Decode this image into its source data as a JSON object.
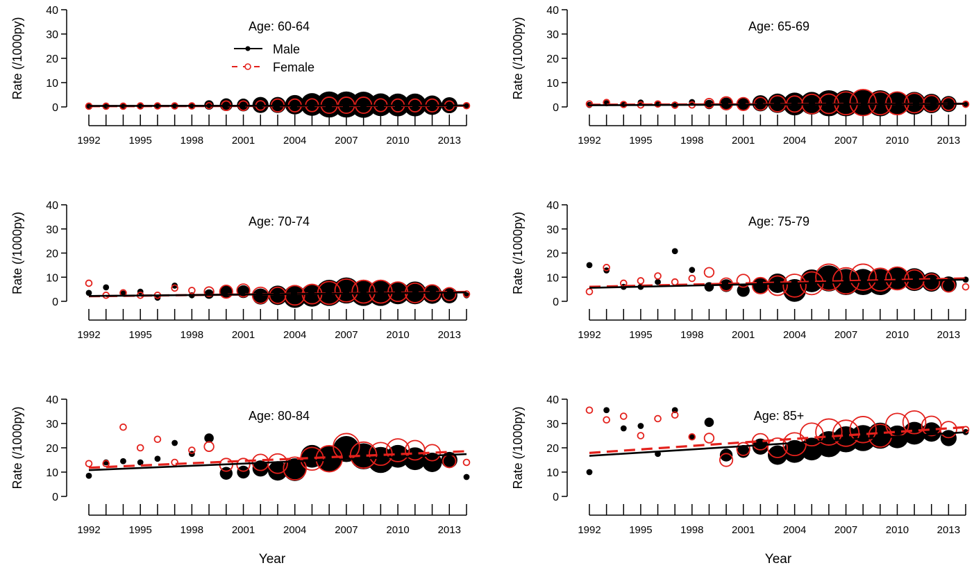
{
  "figure": {
    "y_label": "Rate (/1000py)",
    "x_label": "Year",
    "y_ticks": [
      "0",
      "10",
      "20",
      "30",
      "40"
    ],
    "x_ticks": [
      "1992",
      "1995",
      "1998",
      "2001",
      "2004",
      "2007",
      "2010",
      "2013"
    ]
  },
  "legend": {
    "male_label": "Male",
    "female_label": "Female",
    "male_color": "#000000",
    "female_color": "#e3211c"
  },
  "chart_data": [
    {
      "type": "scatter",
      "title": "Age: 60-64",
      "ylim": [
        0,
        40
      ],
      "xlim": [
        1992,
        2014
      ],
      "x": [
        1992,
        1993,
        1994,
        1995,
        1996,
        1997,
        1998,
        1999,
        2000,
        2001,
        2002,
        2003,
        2004,
        2005,
        2006,
        2007,
        2008,
        2009,
        2010,
        2011,
        2012,
        2013,
        2014
      ],
      "series": [
        {
          "name": "Male",
          "values": [
            0.5,
            0.3,
            0.4,
            0.5,
            0.5,
            0.6,
            0.5,
            0.8,
            0.9,
            0.8,
            0.8,
            0.8,
            0.9,
            1.0,
            1.0,
            1.0,
            0.9,
            0.9,
            0.8,
            0.8,
            0.7,
            0.7,
            0.6
          ],
          "size": [
            1,
            1,
            1,
            1,
            1,
            1,
            1,
            2,
            3,
            3,
            4,
            4,
            5,
            6,
            7,
            7,
            7,
            6,
            6,
            6,
            5,
            4,
            1
          ],
          "trend": [
            0.4,
            0.6
          ]
        },
        {
          "name": "Female",
          "values": [
            0.3,
            0.3,
            0.3,
            0.4,
            0.4,
            0.4,
            0.4,
            0.5,
            0.5,
            0.5,
            0.6,
            0.6,
            0.6,
            0.7,
            0.7,
            0.7,
            0.7,
            0.7,
            0.6,
            0.6,
            0.6,
            0.5,
            0.5
          ],
          "size": [
            1,
            1,
            1,
            1,
            1,
            1,
            1,
            1,
            2,
            2,
            2,
            3,
            3,
            3,
            4,
            4,
            4,
            3,
            3,
            3,
            3,
            2,
            1
          ],
          "trend": [
            0.3,
            0.5
          ]
        }
      ]
    },
    {
      "type": "scatter",
      "title": "Age: 65-69",
      "ylim": [
        0,
        40
      ],
      "xlim": [
        1992,
        2014
      ],
      "x": [
        1992,
        1993,
        1994,
        1995,
        1996,
        1997,
        1998,
        1999,
        2000,
        2001,
        2002,
        2003,
        2004,
        2005,
        2006,
        2007,
        2008,
        2009,
        2010,
        2011,
        2012,
        2013,
        2014
      ],
      "series": [
        {
          "name": "Male",
          "values": [
            0.8,
            1.5,
            1.0,
            1.8,
            1.0,
            1.0,
            2.0,
            1.0,
            1.2,
            1.0,
            1.5,
            1.5,
            1.2,
            1.5,
            1.5,
            1.5,
            1.6,
            1.5,
            1.6,
            1.5,
            1.4,
            1.2,
            1.2
          ],
          "size": [
            1,
            1,
            1,
            1,
            1,
            1,
            1,
            2,
            3,
            3,
            4,
            5,
            6,
            6,
            7,
            7,
            7,
            7,
            6,
            6,
            5,
            4,
            1
          ],
          "trend": [
            0.7,
            1.3
          ]
        },
        {
          "name": "Female",
          "values": [
            1.2,
            1.8,
            1.0,
            0.8,
            1.2,
            0.7,
            0.8,
            1.5,
            1.5,
            1.2,
            1.3,
            1.3,
            1.2,
            1.2,
            1.3,
            1.5,
            1.8,
            1.5,
            1.5,
            1.6,
            1.4,
            1.2,
            1.1
          ],
          "size": [
            1,
            1,
            1,
            1,
            1,
            1,
            1,
            2,
            3,
            3,
            3,
            4,
            4,
            5,
            5,
            6,
            7,
            6,
            6,
            5,
            4,
            3,
            1
          ],
          "trend": [
            0.9,
            1.3
          ]
        }
      ]
    },
    {
      "type": "scatter",
      "title": "Age: 70-74",
      "ylim": [
        0,
        40
      ],
      "xlim": [
        1992,
        2014
      ],
      "x": [
        1992,
        1993,
        1994,
        1995,
        1996,
        1997,
        1998,
        1999,
        2000,
        2001,
        2002,
        2003,
        2004,
        2005,
        2006,
        2007,
        2008,
        2009,
        2010,
        2011,
        2012,
        2013,
        2014
      ],
      "series": [
        {
          "name": "Male",
          "values": [
            3.5,
            5.8,
            3.2,
            4.0,
            1.5,
            6.5,
            2.5,
            3.0,
            4.0,
            4.0,
            2.0,
            2.5,
            2.0,
            2.5,
            3.5,
            4.5,
            3.5,
            3.5,
            3.5,
            3.5,
            3.0,
            2.5,
            2.5
          ],
          "size": [
            1,
            1,
            1,
            1,
            1,
            1,
            1,
            2,
            3,
            3,
            4,
            5,
            6,
            6,
            7,
            7,
            7,
            7,
            6,
            6,
            5,
            4,
            1
          ],
          "trend": [
            2.2,
            3.7
          ]
        },
        {
          "name": "Female",
          "values": [
            7.5,
            2.5,
            3.5,
            2.5,
            2.5,
            5.5,
            4.5,
            4.0,
            4.0,
            4.5,
            2.5,
            2.5,
            2.5,
            3.0,
            3.5,
            4.5,
            4.0,
            4.0,
            4.0,
            3.5,
            3.5,
            3.0,
            3.0
          ],
          "size": [
            1,
            1,
            1,
            1,
            1,
            1,
            1,
            2,
            3,
            3,
            4,
            4,
            5,
            5,
            6,
            6,
            6,
            6,
            5,
            5,
            4,
            3,
            1
          ],
          "trend": [
            2.1,
            3.9
          ]
        }
      ]
    },
    {
      "type": "scatter",
      "title": "Age: 75-79",
      "ylim": [
        0,
        40
      ],
      "xlim": [
        1992,
        2014
      ],
      "x": [
        1992,
        1993,
        1994,
        1995,
        1996,
        1997,
        1998,
        1999,
        2000,
        2001,
        2002,
        2003,
        2004,
        2005,
        2006,
        2007,
        2008,
        2009,
        2010,
        2011,
        2012,
        2013,
        2014
      ],
      "series": [
        {
          "name": "Male",
          "values": [
            15.0,
            12.8,
            6.0,
            6.0,
            8.0,
            20.8,
            13.0,
            6.0,
            6.5,
            4.5,
            6.5,
            7.5,
            4.5,
            8.5,
            9.5,
            8.0,
            8.0,
            8.0,
            9.5,
            9.0,
            8.0,
            7.0,
            9.0
          ],
          "size": [
            1,
            1,
            1,
            1,
            1,
            1,
            1,
            2,
            3,
            3,
            4,
            5,
            6,
            6,
            7,
            7,
            7,
            7,
            6,
            6,
            5,
            4,
            1
          ],
          "trend": [
            5.6,
            9.0
          ]
        },
        {
          "name": "Female",
          "values": [
            4.0,
            14.0,
            7.5,
            8.5,
            10.5,
            8.0,
            9.5,
            12.0,
            7.0,
            8.5,
            6.5,
            6.5,
            6.5,
            7.5,
            10.0,
            8.5,
            10.0,
            9.0,
            9.5,
            9.0,
            8.0,
            6.5,
            6.0
          ],
          "size": [
            1,
            1,
            1,
            1,
            1,
            1,
            1,
            2,
            3,
            3,
            4,
            5,
            6,
            6,
            7,
            7,
            7,
            6,
            6,
            5,
            4,
            3,
            1
          ],
          "trend": [
            6.0,
            9.5
          ]
        }
      ]
    },
    {
      "type": "scatter",
      "title": "Age: 80-84",
      "ylim": [
        0,
        40
      ],
      "xlim": [
        1992,
        2014
      ],
      "x": [
        1992,
        1993,
        1994,
        1995,
        1996,
        1997,
        1998,
        1999,
        2000,
        2001,
        2002,
        2003,
        2004,
        2005,
        2006,
        2007,
        2008,
        2009,
        2010,
        2011,
        2012,
        2013,
        2014
      ],
      "series": [
        {
          "name": "Male",
          "values": [
            8.5,
            14.0,
            14.5,
            14.0,
            15.5,
            22.0,
            17.5,
            24.0,
            9.5,
            10.0,
            11.5,
            10.5,
            11.0,
            16.5,
            15.5,
            19.5,
            16.5,
            15.0,
            16.5,
            15.5,
            14.0,
            15.0,
            8.0
          ],
          "size": [
            1,
            1,
            1,
            1,
            1,
            1,
            1,
            2,
            3,
            3,
            4,
            5,
            6,
            6,
            7,
            7,
            7,
            7,
            6,
            6,
            5,
            4,
            1
          ],
          "trend": [
            10.8,
            17.4
          ]
        },
        {
          "name": "Female",
          "values": [
            13.5,
            13.5,
            28.5,
            20.0,
            23.5,
            14.0,
            19.0,
            20.5,
            13.0,
            13.0,
            14.0,
            13.5,
            11.5,
            15.5,
            15.5,
            20.5,
            17.0,
            17.5,
            19.0,
            19.0,
            18.0,
            14.5,
            14.0
          ],
          "size": [
            1,
            1,
            1,
            1,
            1,
            1,
            1,
            2,
            3,
            3,
            4,
            5,
            6,
            6,
            7,
            7,
            7,
            6,
            6,
            5,
            4,
            3,
            1
          ],
          "trend": [
            11.8,
            18.6
          ]
        }
      ]
    },
    {
      "type": "scatter",
      "title": "Age: 85+",
      "ylim": [
        0,
        40
      ],
      "xlim": [
        1992,
        2014
      ],
      "x": [
        1992,
        1993,
        1994,
        1995,
        1996,
        1997,
        1998,
        1999,
        2000,
        2001,
        2002,
        2003,
        2004,
        2005,
        2006,
        2007,
        2008,
        2009,
        2010,
        2011,
        2012,
        2013,
        2014
      ],
      "series": [
        {
          "name": "Male",
          "values": [
            10.0,
            35.5,
            28.0,
            29.0,
            17.5,
            35.5,
            24.5,
            30.5,
            17.0,
            18.5,
            20.5,
            17.0,
            18.5,
            19.5,
            21.5,
            23.5,
            24.0,
            25.0,
            24.5,
            26.0,
            26.5,
            24.0,
            26.5
          ],
          "size": [
            1,
            1,
            1,
            1,
            1,
            1,
            1,
            2,
            3,
            3,
            4,
            5,
            6,
            6,
            7,
            7,
            7,
            7,
            6,
            6,
            5,
            4,
            1
          ],
          "trend": [
            16.7,
            26.4
          ]
        },
        {
          "name": "Female",
          "values": [
            35.5,
            31.5,
            33.0,
            25.0,
            32.0,
            33.5,
            24.5,
            24.0,
            15.0,
            19.5,
            22.5,
            20.0,
            21.5,
            25.5,
            26.5,
            26.0,
            27.5,
            25.0,
            29.5,
            30.5,
            29.0,
            27.5,
            27.5
          ],
          "size": [
            1,
            1,
            1,
            1,
            1,
            1,
            1,
            2,
            3,
            3,
            4,
            5,
            6,
            6,
            7,
            7,
            7,
            6,
            6,
            6,
            5,
            4,
            1
          ],
          "trend": [
            17.9,
            28.5
          ]
        }
      ]
    }
  ]
}
